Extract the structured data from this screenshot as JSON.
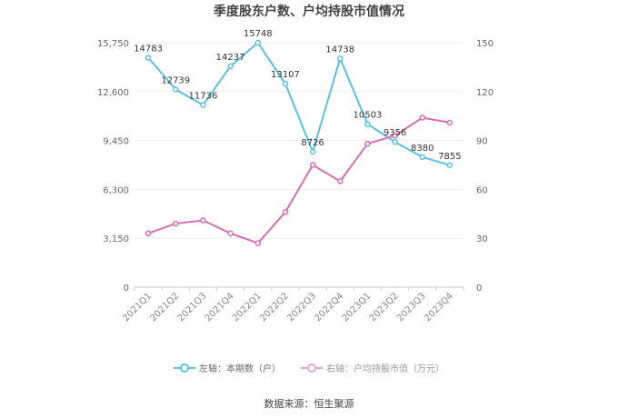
{
  "chart_data": {
    "type": "line",
    "title": "季度股东户数、户均持股市值情况",
    "categories": [
      "2021Q1",
      "2021Q2",
      "2021Q3",
      "2021Q4",
      "2022Q1",
      "2022Q2",
      "2022Q3",
      "2022Q4",
      "2023Q1",
      "2023Q2",
      "2023Q3",
      "2023Q4"
    ],
    "left_axis": {
      "ticks": [
        "0",
        "3,150",
        "6,300",
        "9,450",
        "12,600",
        "15,750"
      ],
      "ylim": [
        0,
        15750
      ]
    },
    "right_axis": {
      "ticks": [
        "0",
        "30",
        "60",
        "90",
        "120",
        "150"
      ],
      "ylim": [
        0,
        150
      ]
    },
    "series": [
      {
        "name": "左轴：本期数（户）",
        "axis": "left",
        "color": "#5bc0eb",
        "values": [
          14783,
          12739,
          11736,
          14237,
          15748,
          13107,
          8726,
          14738,
          10503,
          9356,
          8380,
          7855
        ],
        "labels": [
          "14783",
          "12739",
          "11736",
          "14237",
          "15748",
          "13107",
          "8726",
          "14738",
          "10503",
          "9356",
          "8380",
          "7855"
        ]
      },
      {
        "name": "右轴：户均持股市值（万元）",
        "axis": "right",
        "color": "#d96cb4",
        "values": [
          33,
          39,
          41,
          33,
          27,
          46,
          75,
          65,
          88,
          93,
          104,
          101
        ]
      }
    ]
  },
  "source": "数据来源：恒生聚源"
}
